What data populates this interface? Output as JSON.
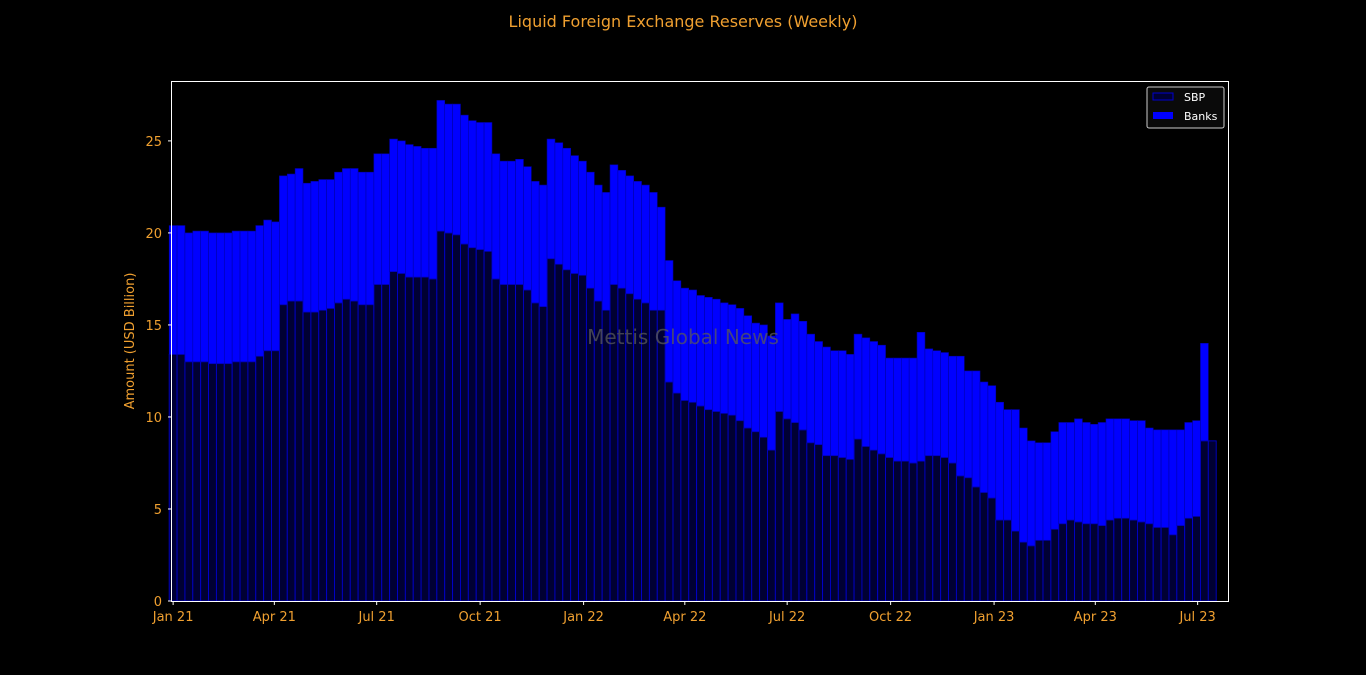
{
  "chart_data": {
    "type": "bar",
    "stacked": true,
    "title": "Liquid Foreign Exchange Reserves (Weekly)",
    "ylabel": "Amount (USD Billion)",
    "xlabel": "",
    "ylim": [
      0,
      28.2
    ],
    "yticks": [
      0,
      5,
      10,
      15,
      20,
      25
    ],
    "x_start": "2020-12-31",
    "x_end": "2023-07-28",
    "xticks": [
      {
        "date": "2021-01-01",
        "label": "Jan 21"
      },
      {
        "date": "2021-04-01",
        "label": "Apr 21"
      },
      {
        "date": "2021-07-01",
        "label": "Jul 21"
      },
      {
        "date": "2021-10-01",
        "label": "Oct 21"
      },
      {
        "date": "2022-01-01",
        "label": "Jan 22"
      },
      {
        "date": "2022-04-01",
        "label": "Apr 22"
      },
      {
        "date": "2022-07-01",
        "label": "Jul 22"
      },
      {
        "date": "2022-10-01",
        "label": "Oct 22"
      },
      {
        "date": "2023-01-01",
        "label": "Jan 23"
      },
      {
        "date": "2023-04-01",
        "label": "Apr 23"
      },
      {
        "date": "2023-07-01",
        "label": "Jul 23"
      }
    ],
    "x_first": "2021-01-01",
    "x_step_days": 7,
    "series": [
      {
        "name": "SBP",
        "fill": "#000033",
        "edge": "#0000cc",
        "values": [
          13.4,
          13.4,
          13.0,
          13.0,
          13.0,
          12.9,
          12.9,
          12.9,
          13.0,
          13.0,
          13.0,
          13.3,
          13.6,
          13.6,
          16.1,
          16.3,
          16.3,
          15.7,
          15.7,
          15.8,
          15.9,
          16.2,
          16.4,
          16.3,
          16.1,
          16.1,
          17.2,
          17.2,
          17.9,
          17.8,
          17.6,
          17.6,
          17.6,
          17.5,
          20.1,
          20.0,
          19.9,
          19.4,
          19.2,
          19.1,
          19.0,
          17.5,
          17.2,
          17.2,
          17.2,
          16.9,
          16.2,
          16.0,
          18.6,
          18.3,
          18.0,
          17.8,
          17.7,
          17.0,
          16.3,
          15.8,
          17.2,
          17.0,
          16.7,
          16.4,
          16.2,
          15.8,
          15.8,
          11.9,
          11.3,
          10.9,
          10.8,
          10.6,
          10.4,
          10.3,
          10.2,
          10.1,
          9.8,
          9.4,
          9.2,
          8.9,
          8.2,
          10.3,
          9.9,
          9.7,
          9.3,
          8.6,
          8.5,
          7.9,
          7.9,
          7.8,
          7.7,
          8.8,
          8.4,
          8.2,
          8.0,
          7.8,
          7.6,
          7.6,
          7.5,
          7.6,
          7.9,
          7.9,
          7.8,
          7.5,
          6.8,
          6.7,
          6.2,
          5.9,
          5.6,
          4.4,
          4.4,
          3.8,
          3.2,
          3.0,
          3.3,
          3.3,
          3.9,
          4.2,
          4.4,
          4.3,
          4.2,
          4.2,
          4.1,
          4.4,
          4.5,
          4.5,
          4.4,
          4.3,
          4.2,
          4.0,
          4.0,
          3.6,
          4.1,
          4.5,
          4.6,
          8.7,
          8.7
        ]
      },
      {
        "name": "Banks",
        "fill": "#0000ff",
        "values": [
          7.0,
          7.0,
          7.0,
          7.1,
          7.1,
          7.1,
          7.1,
          7.1,
          7.1,
          7.1,
          7.1,
          7.1,
          7.1,
          7.0,
          7.0,
          6.9,
          7.2,
          7.0,
          7.1,
          7.1,
          7.0,
          7.1,
          7.1,
          7.2,
          7.2,
          7.2,
          7.1,
          7.1,
          7.2,
          7.2,
          7.2,
          7.1,
          7.0,
          7.1,
          7.1,
          7.0,
          7.1,
          7.0,
          6.9,
          6.9,
          7.0,
          6.8,
          6.7,
          6.7,
          6.8,
          6.7,
          6.6,
          6.6,
          6.5,
          6.6,
          6.6,
          6.4,
          6.2,
          6.3,
          6.3,
          6.4,
          6.5,
          6.4,
          6.4,
          6.4,
          6.4,
          6.4,
          5.6,
          6.6,
          6.1,
          6.1,
          6.1,
          6.0,
          6.1,
          6.1,
          6.0,
          6.0,
          6.1,
          6.1,
          5.9,
          6.1,
          6.2,
          5.9,
          5.4,
          5.9,
          5.9,
          5.9,
          5.6,
          5.9,
          5.7,
          5.8,
          5.7,
          5.7,
          5.9,
          5.9,
          5.9,
          5.4,
          5.6,
          5.6,
          5.7,
          7.0,
          5.8,
          5.7,
          5.7,
          5.8,
          6.5,
          5.8,
          6.3,
          6.0,
          6.1,
          6.4,
          6.0,
          6.6,
          6.2,
          5.7,
          5.3,
          5.3,
          5.3,
          5.5,
          5.3,
          5.6,
          5.5,
          5.4,
          5.6,
          5.5,
          5.4,
          5.4,
          5.4,
          5.5,
          5.2,
          5.3,
          5.3,
          5.7,
          5.2,
          5.2,
          5.2,
          5.3,
          0.0
        ]
      }
    ],
    "legend": {
      "position": "top-right"
    },
    "grid": false,
    "annotations": [
      {
        "text": "Mettis Global News"
      }
    ],
    "colors": {
      "background": "#000000",
      "text": "#f0a030",
      "frame": "#ffffff"
    }
  }
}
